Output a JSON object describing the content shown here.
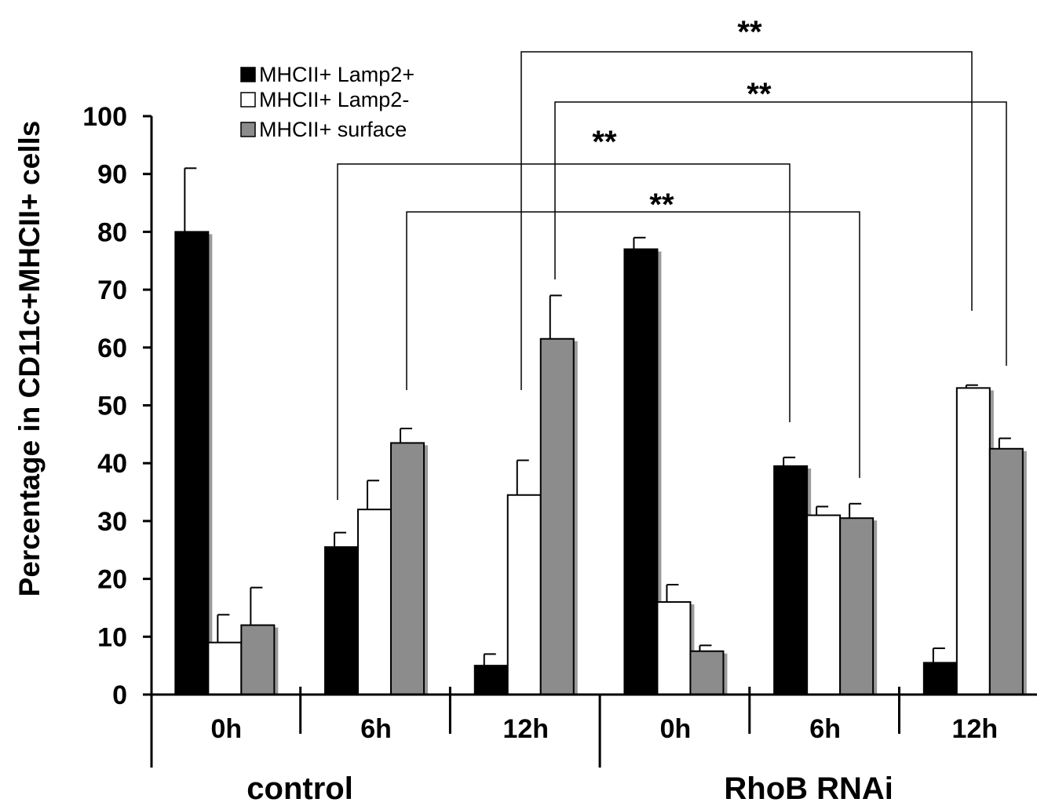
{
  "chart_data": {
    "type": "bar",
    "ylabel": "Percentage in CD11c+MHCII+ cells",
    "ylim": [
      0,
      100
    ],
    "yticks": [
      "0",
      "10",
      "20",
      "30",
      "40",
      "50",
      "60",
      "70",
      "80",
      "90",
      "100"
    ],
    "categories": [
      "0h",
      "6h",
      "12h",
      "0h",
      "6h",
      "12h"
    ],
    "groups": [
      {
        "label": "control",
        "categories": [
          "0h",
          "6h",
          "12h"
        ]
      },
      {
        "label": "RhoB RNAi",
        "categories": [
          "0h",
          "6h",
          "12h"
        ]
      }
    ],
    "legend_position": "top-left",
    "grid": false,
    "series": [
      {
        "name": "MHCII+ Lamp2+",
        "color": "#000000",
        "values": [
          80,
          25.5,
          5,
          77,
          39.5,
          5.5
        ],
        "errors": [
          11,
          2.5,
          2,
          2,
          1.5,
          2.5
        ]
      },
      {
        "name": "MHCII+ Lamp2-",
        "color": "#ffffff",
        "values": [
          9,
          32,
          34.5,
          16,
          31,
          53
        ],
        "errors": [
          4.8,
          5,
          6,
          3,
          1.5,
          0.5
        ]
      },
      {
        "name": "MHCII+ surface",
        "color": "#8c8c8c",
        "values": [
          12,
          43.5,
          61.5,
          7.5,
          30.5,
          42.5
        ],
        "errors": [
          6.5,
          2.5,
          7.5,
          1,
          2.5,
          1.8
        ]
      }
    ],
    "significance": [
      {
        "label": "**",
        "from": "control 6h",
        "to": "RhoB RNAi 6h"
      },
      {
        "label": "**",
        "from": "control 6h",
        "to": "RhoB RNAi 6h"
      },
      {
        "label": "**",
        "from": "control 12h",
        "to": "RhoB RNAi 12h"
      },
      {
        "label": "**",
        "from": "control 12h",
        "to": "RhoB RNAi 12h"
      }
    ]
  }
}
